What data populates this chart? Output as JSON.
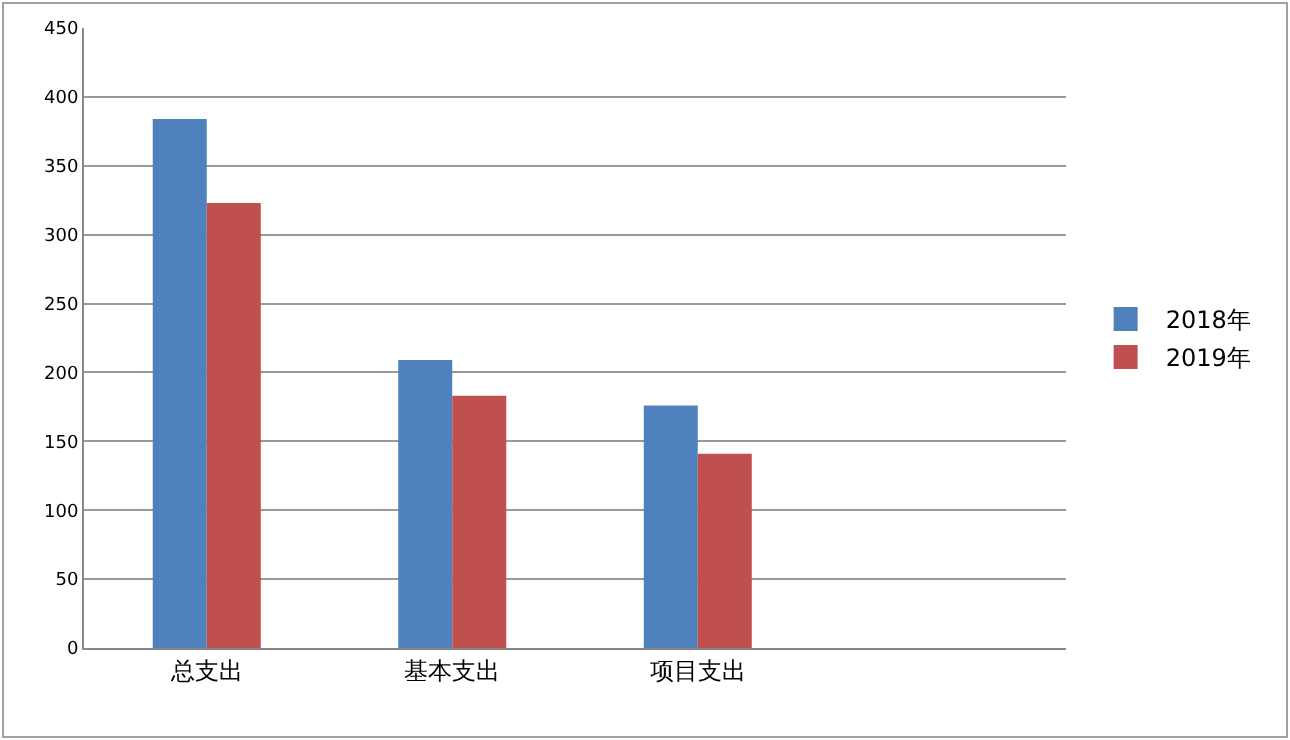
{
  "chart_data": {
    "type": "bar",
    "categories": [
      "总支出",
      "基本支出",
      "项目支出",
      null
    ],
    "series": [
      {
        "name": "2018年",
        "color": "#4f81bd",
        "values": [
          384,
          209,
          176,
          null
        ]
      },
      {
        "name": "2019年",
        "color": "#c0504d",
        "values": [
          323,
          183,
          141,
          null
        ]
      }
    ],
    "ylim": [
      0,
      450
    ],
    "yticks": [
      0,
      50,
      100,
      150,
      200,
      250,
      300,
      350,
      400,
      450
    ],
    "grid": "y",
    "legend": "right"
  }
}
